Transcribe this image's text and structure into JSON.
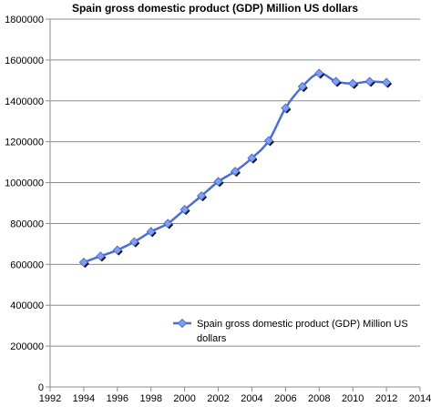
{
  "chart_data": {
    "type": "line",
    "title": "Spain gross domestic product (GDP) Million US dollars",
    "xlabel": "",
    "ylabel": "",
    "xlim": [
      1992,
      2014
    ],
    "ylim": [
      0,
      1800000
    ],
    "x_ticks": [
      "1992",
      "1994",
      "1996",
      "1998",
      "2000",
      "2002",
      "2004",
      "2006",
      "2008",
      "2010",
      "2012",
      "2014"
    ],
    "y_ticks": [
      "0",
      "200000",
      "400000",
      "600000",
      "800000",
      "1000000",
      "1200000",
      "1400000",
      "1600000",
      "1800000"
    ],
    "grid": "horizontal",
    "legend_position": "bottom-right",
    "series": [
      {
        "name": "Spain gross domestic product (GDP) Million US dollars",
        "legend_lines": [
          "Spain gross domestic product (GDP) Million US",
          "dollars"
        ],
        "color": "#4a6fd0",
        "x": [
          1994,
          1995,
          1996,
          1997,
          1998,
          1999,
          2000,
          2001,
          2002,
          2003,
          2004,
          2005,
          2006,
          2007,
          2008,
          2009,
          2010,
          2011,
          2012
        ],
        "y": [
          610000,
          640000,
          670000,
          710000,
          760000,
          800000,
          868000,
          935000,
          1005000,
          1055000,
          1120000,
          1205000,
          1365000,
          1470000,
          1535000,
          1495000,
          1485000,
          1495000,
          1490000
        ]
      }
    ]
  }
}
